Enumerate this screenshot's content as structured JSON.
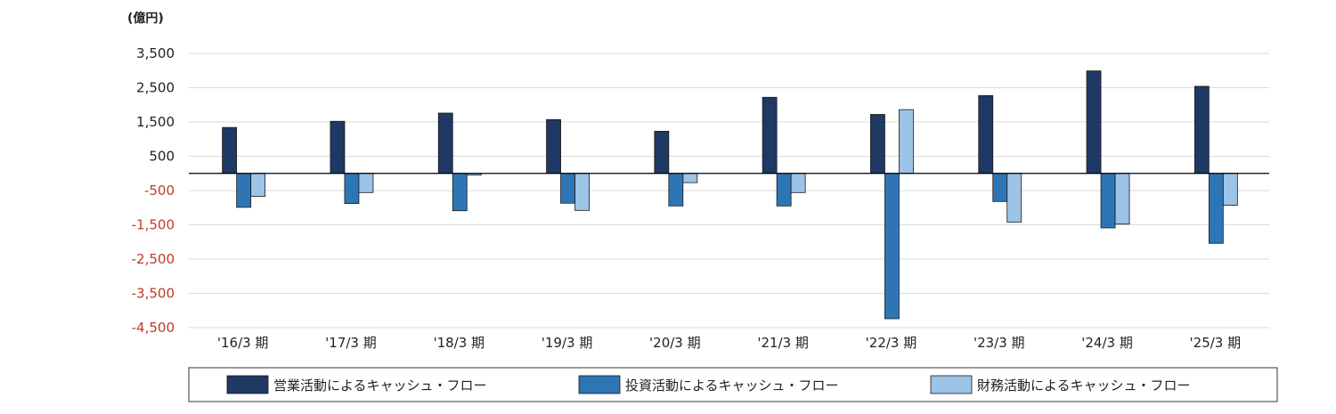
{
  "chart_data": {
    "type": "bar",
    "unit_label": "(億円)",
    "categories": [
      "'16/3 期",
      "'17/3 期",
      "'18/3 期",
      "'19/3 期",
      "'20/3 期",
      "'21/3 期",
      "'22/3 期",
      "'23/3 期",
      "'24/3 期",
      "'25/3 期"
    ],
    "series": [
      {
        "name": "営業活動によるキャッシュ・フロー",
        "color": "#1f3864",
        "values": [
          1340,
          1520,
          1760,
          1570,
          1230,
          2220,
          1720,
          2270,
          2990,
          2540
        ]
      },
      {
        "name": "投資活動によるキャッシュ・フロー",
        "color": "#2e75b6",
        "values": [
          -990,
          -880,
          -1090,
          -870,
          -950,
          -950,
          -4240,
          -820,
          -1590,
          -2040
        ]
      },
      {
        "name": "財務活動によるキャッシュ・フロー",
        "color": "#9dc3e6",
        "values": [
          -670,
          -560,
          -50,
          -1080,
          -270,
          -560,
          1860,
          -1420,
          -1480,
          -930
        ]
      }
    ],
    "yticks": [
      3500,
      2500,
      1500,
      500,
      -500,
      -1500,
      -2500,
      -3500,
      -4500
    ],
    "ytick_labels": [
      "3,500",
      "2,500",
      "1,500",
      "500",
      "-500",
      "-1,500",
      "-2,500",
      "-3,500",
      "-4,500"
    ],
    "ylim": [
      -4500,
      3500
    ],
    "grid": true,
    "legend_position": "bottom",
    "negative_tick_color": "#c0392b",
    "positive_tick_color": "#222222"
  }
}
